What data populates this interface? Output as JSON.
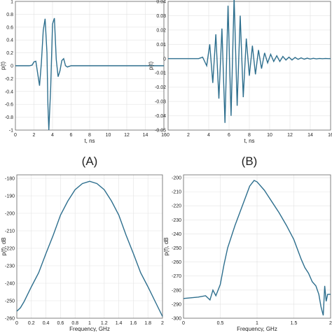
{
  "chart_data": [
    {
      "id": "A",
      "type": "line",
      "panel_label": "(A)",
      "xlabel": "t, ns",
      "ylabel": "p(t)",
      "xlim": [
        0,
        16
      ],
      "ylim": [
        -1,
        1
      ],
      "xticks": [
        0,
        2,
        4,
        6,
        8,
        10,
        12,
        14,
        16
      ],
      "yticks": [
        -1,
        -0.8,
        -0.6,
        -0.4,
        -0.2,
        0,
        0.2,
        0.4,
        0.6,
        0.8,
        1
      ],
      "grid": true,
      "color": "#2e6f8e",
      "x": [
        0,
        1.5,
        1.8,
        2.0,
        2.2,
        2.4,
        2.6,
        2.8,
        3.0,
        3.2,
        3.4,
        3.5,
        3.6,
        3.8,
        4.0,
        4.2,
        4.4,
        4.6,
        4.8,
        5.0,
        5.2,
        5.4,
        5.6,
        6.0,
        16
      ],
      "y": [
        0,
        0,
        0.01,
        0.06,
        0.07,
        -0.12,
        -0.31,
        0.05,
        0.55,
        0.73,
        0.2,
        -0.6,
        -1.0,
        -0.35,
        0.65,
        0.74,
        0.1,
        -0.17,
        -0.08,
        0.08,
        0.11,
        0.0,
        -0.02,
        0,
        0
      ]
    },
    {
      "id": "B",
      "type": "line",
      "panel_label": "(B)",
      "xlabel": "t, ns",
      "ylabel": "p(t)",
      "xlim": [
        0,
        16
      ],
      "ylim": [
        -0.05,
        0.04
      ],
      "xticks": [
        0,
        2,
        4,
        6,
        8,
        10,
        12,
        14,
        16
      ],
      "yticks": [
        -0.05,
        -0.04,
        -0.03,
        -0.02,
        -0.01,
        0,
        0.01,
        0.02,
        0.03,
        0.04
      ],
      "grid": true,
      "color": "#2e6f8e",
      "x": [
        0,
        3.0,
        3.4,
        3.8,
        4.1,
        4.4,
        4.7,
        5.0,
        5.3,
        5.6,
        5.9,
        6.2,
        6.5,
        6.8,
        7.1,
        7.4,
        7.7,
        8.0,
        8.3,
        8.6,
        8.9,
        9.2,
        9.5,
        9.8,
        10.1,
        10.4,
        10.7,
        11.0,
        11.3,
        11.6,
        11.9,
        12.2,
        12.5,
        12.8,
        13.1,
        13.4,
        13.7,
        14.0,
        14.3,
        14.6,
        14.9,
        15.2,
        15.5,
        15.8,
        16
      ],
      "y": [
        0,
        0,
        0.001,
        -0.005,
        0.01,
        -0.017,
        0.017,
        -0.028,
        0.021,
        -0.045,
        0.037,
        -0.04,
        0.043,
        -0.033,
        0.03,
        -0.027,
        0.014,
        -0.012,
        0.009,
        -0.011,
        0.006,
        -0.007,
        0.004,
        -0.003,
        0.003,
        -0.002,
        0.002,
        -0.002,
        0.0015,
        -0.001,
        0.001,
        -0.001,
        0.0008,
        -0.0005,
        0.0005,
        -0.0004,
        0.0003,
        -0.0003,
        0.0002,
        -0.0002,
        0.0001,
        -0.0001,
        0.0001,
        0,
        0
      ]
    },
    {
      "id": "C",
      "type": "line",
      "panel_label": "",
      "xlabel": "Frequency, GHz",
      "ylabel": "p(f), dB",
      "xlim": [
        0,
        2
      ],
      "ylim": [
        -260,
        -178
      ],
      "xticks": [
        0,
        0.2,
        0.4,
        0.6,
        0.8,
        1,
        1.2,
        1.4,
        1.6,
        1.8,
        2
      ],
      "yticks": [
        -260,
        -250,
        -240,
        -230,
        -220,
        -210,
        -200,
        -190,
        -180
      ],
      "grid": true,
      "color": "#2e6f8e",
      "x": [
        0,
        0.05,
        0.1,
        0.2,
        0.3,
        0.4,
        0.5,
        0.6,
        0.7,
        0.8,
        0.9,
        1.0,
        1.1,
        1.2,
        1.3,
        1.4,
        1.5,
        1.6,
        1.7,
        1.8,
        1.9,
        2.0
      ],
      "y": [
        -256,
        -254,
        -250.5,
        -242,
        -234,
        -223,
        -212.5,
        -201,
        -193,
        -186.5,
        -183,
        -181.7,
        -183,
        -186.5,
        -193,
        -201,
        -212.5,
        -223,
        -234,
        -242,
        -250.5,
        -259
      ]
    },
    {
      "id": "D",
      "type": "line",
      "panel_label": "",
      "xlabel": "Frequency, GHz",
      "ylabel": "p(f), dB",
      "xlim": [
        0,
        2
      ],
      "ylim": [
        -300,
        -198
      ],
      "xticks": [
        0,
        0.5,
        1,
        1.5,
        2
      ],
      "yticks": [
        -300,
        -290,
        -280,
        -270,
        -260,
        -250,
        -240,
        -230,
        -220,
        -210,
        -200
      ],
      "grid": true,
      "color": "#2e6f8e",
      "x": [
        0,
        0.1,
        0.2,
        0.3,
        0.36,
        0.4,
        0.44,
        0.5,
        0.55,
        0.6,
        0.7,
        0.8,
        0.9,
        0.96,
        1.0,
        1.1,
        1.2,
        1.3,
        1.4,
        1.5,
        1.6,
        1.65,
        1.7,
        1.75,
        1.8,
        1.84,
        1.87,
        1.9,
        1.92,
        1.94,
        1.96,
        2.0
      ],
      "y": [
        -286,
        -285.5,
        -285,
        -284,
        -287,
        -280,
        -284,
        -276,
        -262,
        -250,
        -234,
        -220,
        -206,
        -202,
        -203,
        -209,
        -217,
        -225,
        -234,
        -244,
        -258,
        -264,
        -268,
        -274,
        -277,
        -283,
        -292,
        -298,
        -277,
        -288,
        -283,
        -283
      ]
    }
  ]
}
